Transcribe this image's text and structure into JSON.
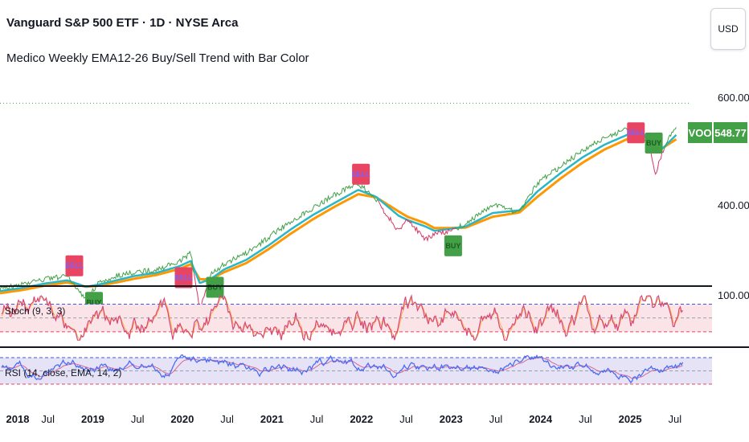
{
  "header": {
    "title": "Vanguard S&P 500 ETF · 1D · NYSE Arca",
    "subtitle": "Medico Weekly EMA12-26 Buy/Sell Trend with Bar Color",
    "currency": "USD"
  },
  "colors": {
    "price_up": "#43a047",
    "price_down": "#d63864",
    "ema_fast": "#29b6c7",
    "ema_slow": "#ff9800",
    "buy": "#43a047",
    "sell": "#e84563",
    "stoch_k": "#d6477a",
    "stoch_d": "#ff9800",
    "rsi": "#4a6cf7",
    "rsi_ma": "#d6477a",
    "stoch_band": "#fbe4e8",
    "rsi_band": "#e6e3f6",
    "upper_level": "#3b5bdb",
    "lower_level": "#e8455a",
    "mid_level": "#9aa0ab"
  },
  "tickers": {
    "symbol": "VOO",
    "last_price": "548.77"
  },
  "chart_data": [
    {
      "type": "line",
      "name": "price-pane",
      "x_labels": [
        "2018",
        "Jul",
        "2019",
        "Jul",
        "2020",
        "Jul",
        "2021",
        "Jul",
        "2022",
        "Jul",
        "2023",
        "Jul",
        "2024",
        "Jul",
        "2025",
        "Jul"
      ],
      "y_ticks": [
        "600.00",
        "400.00"
      ],
      "x": [
        2018.0,
        2018.25,
        2018.5,
        2018.75,
        2018.96,
        2019.1,
        2019.3,
        2019.5,
        2019.75,
        2020.0,
        2020.13,
        2020.23,
        2020.35,
        2020.5,
        2020.75,
        2021.0,
        2021.25,
        2021.5,
        2021.75,
        2022.0,
        2022.2,
        2022.45,
        2022.55,
        2022.75,
        2022.85,
        2023.0,
        2023.2,
        2023.5,
        2023.8,
        2024.0,
        2024.25,
        2024.5,
        2024.75,
        2025.0,
        2025.12,
        2025.25,
        2025.32,
        2025.4,
        2025.55
      ],
      "series": [
        {
          "name": "",
          "values": [
            245,
            252,
            262,
            268,
            225,
            255,
            268,
            275,
            280,
            295,
            310,
            205,
            270,
            290,
            310,
            340,
            370,
            395,
            420,
            440,
            410,
            350,
            375,
            335,
            345,
            350,
            365,
            400,
            385,
            440,
            470,
            500,
            525,
            540,
            545,
            505,
            460,
            500,
            548.77
          ]
        },
        {
          "name": "",
          "values": [
            240,
            246,
            254,
            260,
            248,
            252,
            260,
            268,
            274,
            286,
            296,
            255,
            262,
            280,
            298,
            325,
            355,
            382,
            405,
            428,
            415,
            380,
            372,
            360,
            352,
            355,
            360,
            385,
            390,
            425,
            458,
            488,
            512,
            530,
            538,
            520,
            500,
            505,
            530
          ]
        },
        {
          "name": "",
          "values": [
            236,
            242,
            250,
            256,
            248,
            250,
            256,
            263,
            270,
            281,
            290,
            262,
            262,
            275,
            292,
            318,
            347,
            374,
            398,
            420,
            414,
            388,
            378,
            366,
            357,
            357,
            358,
            378,
            386,
            415,
            448,
            478,
            503,
            522,
            532,
            522,
            506,
            506,
            522
          ]
        }
      ],
      "signals": [
        {
          "label": "SELL",
          "kind": "sell",
          "x": 2018.83,
          "y": 287
        },
        {
          "label": "BUY",
          "kind": "buy",
          "x": 2019.05,
          "y": 219
        },
        {
          "label": "SELL",
          "kind": "sell",
          "x": 2020.05,
          "y": 265
        },
        {
          "label": "BUY",
          "kind": "buy",
          "x": 2020.4,
          "y": 247
        },
        {
          "label": "SELL",
          "kind": "sell",
          "x": 2022.03,
          "y": 457
        },
        {
          "label": "BUY",
          "kind": "buy",
          "x": 2023.06,
          "y": 324
        },
        {
          "label": "SELL",
          "kind": "sell",
          "x": 2025.1,
          "y": 534
        },
        {
          "label": "BUY",
          "kind": "buy",
          "x": 2025.3,
          "y": 515
        }
      ]
    },
    {
      "type": "line",
      "name": "Stoch (9, 3, 3)",
      "label": "Stoch (9, 3, 3)",
      "y_ticks": [
        "100.00"
      ],
      "levels": [
        80,
        50,
        20
      ],
      "ylim": [
        0,
        100
      ]
    },
    {
      "type": "line",
      "name": "RSI (14, close, EMA, 14, 2)",
      "label": "RSI (14, close, EMA, 14, 2)",
      "levels": [
        70,
        50,
        30
      ],
      "ylim": [
        20,
        80
      ]
    }
  ]
}
